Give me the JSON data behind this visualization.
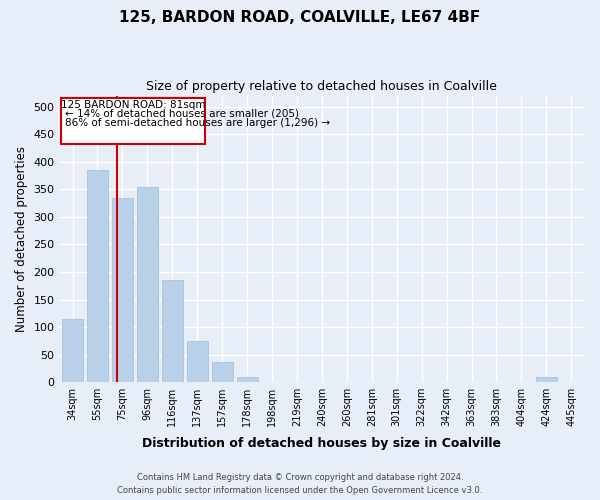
{
  "title": "125, BARDON ROAD, COALVILLE, LE67 4BF",
  "subtitle": "Size of property relative to detached houses in Coalville",
  "xlabel": "Distribution of detached houses by size in Coalville",
  "ylabel": "Number of detached properties",
  "categories": [
    "34sqm",
    "55sqm",
    "75sqm",
    "96sqm",
    "116sqm",
    "137sqm",
    "157sqm",
    "178sqm",
    "198sqm",
    "219sqm",
    "240sqm",
    "260sqm",
    "281sqm",
    "301sqm",
    "322sqm",
    "342sqm",
    "363sqm",
    "383sqm",
    "404sqm",
    "424sqm",
    "445sqm"
  ],
  "values": [
    115,
    385,
    335,
    355,
    185,
    75,
    37,
    9,
    0,
    0,
    0,
    0,
    0,
    0,
    0,
    0,
    0,
    0,
    0,
    9,
    0
  ],
  "bar_color": "#b8d0e8",
  "bar_edge_color": "#a0bcd8",
  "annotation_text_line1": "125 BARDON ROAD: 81sqm",
  "annotation_text_line2": "← 14% of detached houses are smaller (205)",
  "annotation_text_line3": "86% of semi-detached houses are larger (1,296) →",
  "annotation_box_color": "#cc0000",
  "annotation_bg_color": "#ffffff",
  "vline_color": "#cc0000",
  "background_color": "#e8eef8",
  "grid_color": "#ffffff",
  "footer_line1": "Contains HM Land Registry data © Crown copyright and database right 2024.",
  "footer_line2": "Contains public sector information licensed under the Open Government Licence v3.0.",
  "ylim": [
    0,
    520
  ],
  "figsize": [
    6.0,
    5.0
  ],
  "dpi": 100
}
